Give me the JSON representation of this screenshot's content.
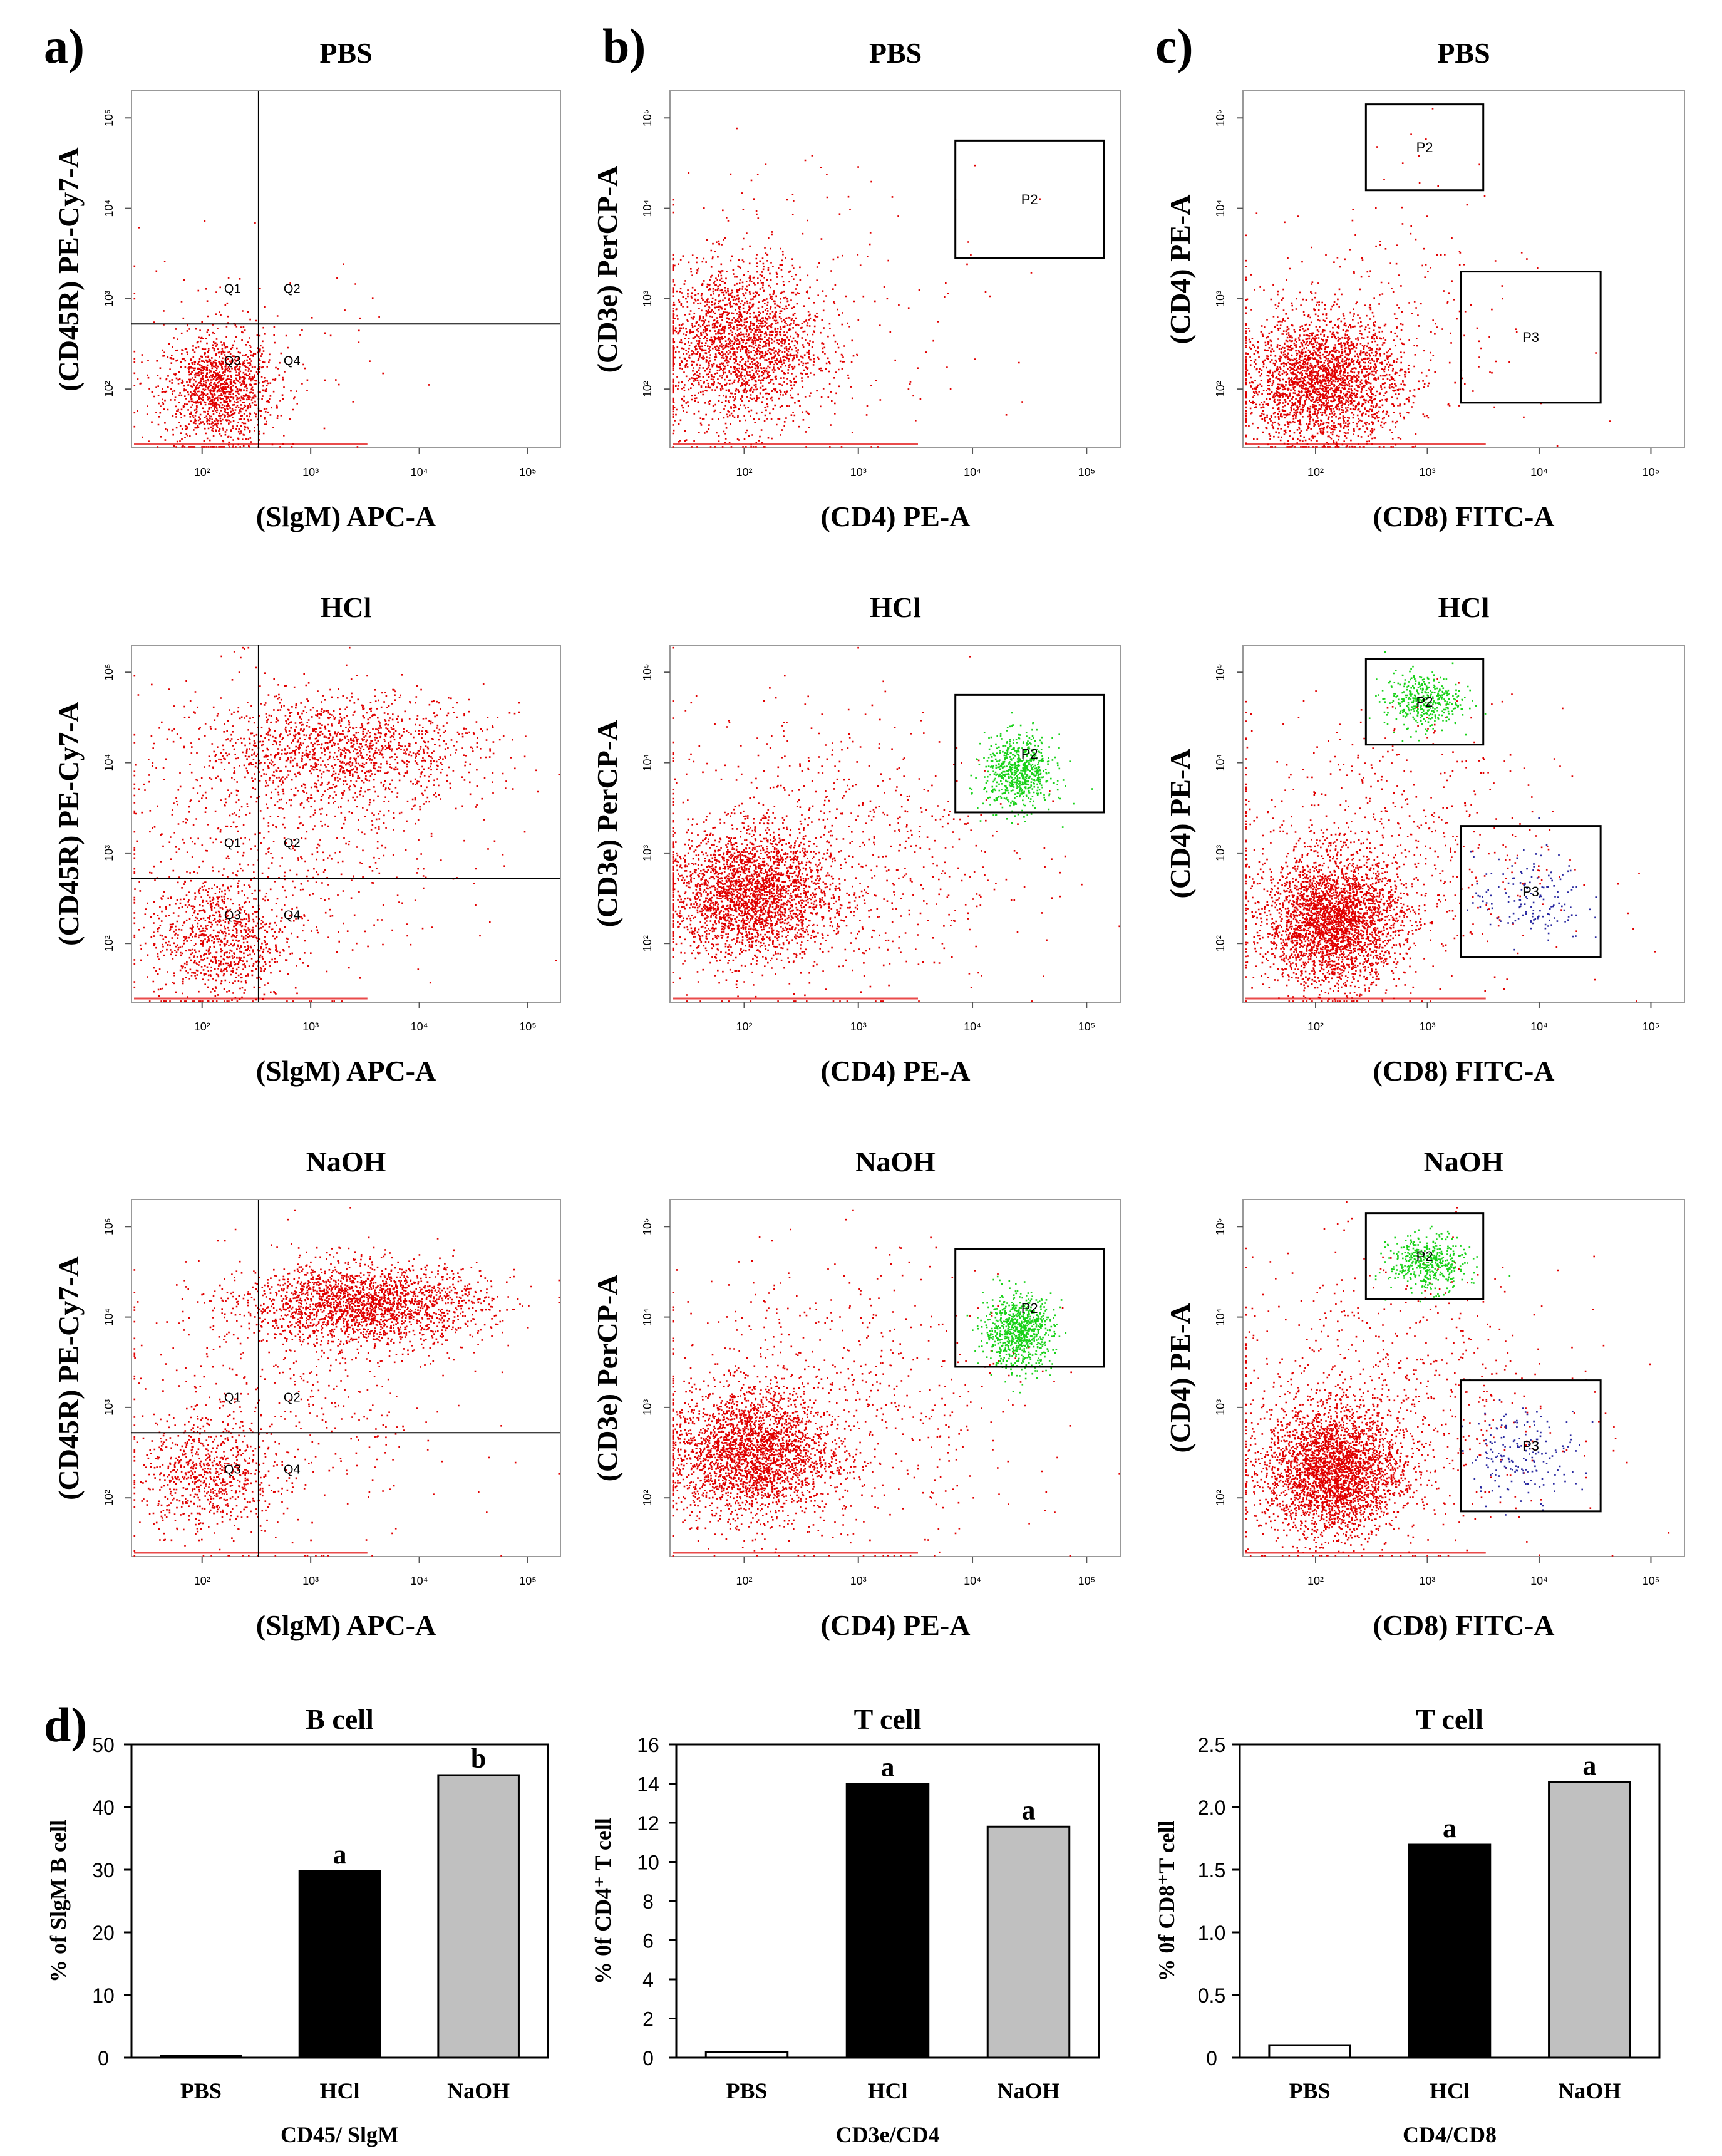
{
  "panel_letters": [
    "a)",
    "b)",
    "c)",
    "d)"
  ],
  "colors": {
    "red": "#e10000",
    "green": "#19d219",
    "blue": "#2828a0",
    "hcl_bar": "#000000",
    "naoh_bar": "#c0c0c0",
    "pbs_bar": "#ffffff"
  },
  "tick_labels": {
    "e2": "10²",
    "e3": "10³",
    "e4": "10⁴",
    "e5": "10⁵"
  },
  "flow": [
    {
      "row_title": "PBS",
      "axis_x": "(SlgM) APC-A",
      "axis_y": "(CD45R) PE-Cy7-A",
      "type": "quad",
      "gate_labels": [
        "Q1",
        "Q2",
        "Q3",
        "Q4"
      ],
      "scatter": {
        "main": [
          2.15,
          2.0,
          0.25,
          0.3,
          1300
        ],
        "spread": [
          2.3,
          2.3,
          0.6,
          0.6,
          150
        ]
      }
    },
    {
      "row_title": "PBS",
      "axis_x": "(CD4) PE-A",
      "axis_y": "(CD3e) PerCP-A",
      "type": "p2",
      "gate_labels": [
        "P2"
      ],
      "scatter": {
        "main": [
          1.95,
          2.5,
          0.35,
          0.45,
          2200
        ],
        "spread": [
          2.6,
          3.0,
          0.8,
          0.8,
          200
        ]
      }
    },
    {
      "row_title": "PBS",
      "axis_x": "(CD8) FITC-A",
      "axis_y": "(CD4) PE-A",
      "type": "p2p3",
      "gate_labels": [
        "P2",
        "P3"
      ],
      "scatter": {
        "main": [
          2.05,
          2.1,
          0.35,
          0.35,
          2600
        ],
        "spread": [
          2.5,
          2.6,
          0.7,
          0.7,
          300
        ],
        "p2": [
          2.9,
          4.7,
          0.2,
          0.2,
          8
        ]
      }
    },
    {
      "row_title": "HCl",
      "axis_x": "(SlgM) APC-A",
      "axis_y": "(CD45R) PE-Cy7-A",
      "type": "quad",
      "gate_labels": [
        "Q1",
        "Q2",
        "Q3",
        "Q4"
      ],
      "scatter": {
        "main": [
          2.15,
          2.05,
          0.3,
          0.35,
          900
        ],
        "upper": [
          3.3,
          4.15,
          0.65,
          0.3,
          1400
        ],
        "spread": [
          2.7,
          3.2,
          0.8,
          0.8,
          700
        ]
      }
    },
    {
      "row_title": "HCl",
      "axis_x": "(CD4) PE-A",
      "axis_y": "(CD3e) PerCP-A",
      "type": "p2",
      "gate_labels": [
        "P2"
      ],
      "scatter": {
        "main": [
          2.05,
          2.55,
          0.35,
          0.35,
          2600
        ],
        "spread": [
          2.7,
          3.0,
          0.8,
          0.8,
          800
        ],
        "p2": [
          4.4,
          3.9,
          0.15,
          0.2,
          700
        ]
      }
    },
    {
      "row_title": "HCl",
      "axis_x": "(CD8) FITC-A",
      "axis_y": "(CD4) PE-A",
      "type": "p2p3",
      "gate_labels": [
        "P2",
        "P3"
      ],
      "scatter": {
        "main": [
          2.15,
          2.25,
          0.3,
          0.35,
          3000
        ],
        "spread": [
          2.6,
          3.0,
          0.8,
          0.8,
          700
        ],
        "p2": [
          2.95,
          4.7,
          0.17,
          0.15,
          400
        ],
        "p3": [
          3.9,
          2.5,
          0.25,
          0.25,
          150
        ]
      }
    },
    {
      "row_title": "NaOH",
      "axis_x": "(SlgM) APC-A",
      "axis_y": "(CD45R) PE-Cy7-A",
      "type": "quad",
      "gate_labels": [
        "Q1",
        "Q2",
        "Q3",
        "Q4"
      ],
      "scatter": {
        "main": [
          2.05,
          2.25,
          0.3,
          0.3,
          700
        ],
        "upper": [
          3.5,
          4.15,
          0.55,
          0.22,
          2200
        ],
        "spread": [
          2.7,
          3.0,
          0.8,
          0.8,
          500
        ]
      }
    },
    {
      "row_title": "NaOH",
      "axis_x": "(CD4) PE-A",
      "axis_y": "(CD3e) PerCP-A",
      "type": "p2",
      "gate_labels": [
        "P2"
      ],
      "scatter": {
        "main": [
          2.05,
          2.5,
          0.35,
          0.35,
          2600
        ],
        "spread": [
          2.8,
          3.0,
          0.8,
          0.8,
          700
        ],
        "p2": [
          4.4,
          3.85,
          0.15,
          0.2,
          800
        ]
      }
    },
    {
      "row_title": "NaOH",
      "axis_x": "(CD8) FITC-A",
      "axis_y": "(CD4) PE-A",
      "type": "p2p3",
      "gate_labels": [
        "P2",
        "P3"
      ],
      "scatter": {
        "main": [
          2.15,
          2.3,
          0.3,
          0.35,
          3000
        ],
        "spread": [
          2.6,
          3.0,
          0.8,
          0.8,
          800
        ],
        "p2": [
          3.0,
          4.6,
          0.17,
          0.15,
          450
        ],
        "p3": [
          3.85,
          2.5,
          0.25,
          0.25,
          180
        ]
      }
    }
  ],
  "chart_data": [
    {
      "type": "bar",
      "title": "B cell",
      "categories": [
        "PBS",
        "HCl",
        "NaOH"
      ],
      "values": [
        0.3,
        29.8,
        45.1
      ],
      "ylabel": "% of SlgM B cell",
      "xlabel": "CD45/ SlgM",
      "ylim": [
        0,
        50
      ],
      "yticks": [
        "0",
        "10",
        "20",
        "30",
        "40",
        "50"
      ],
      "letters": [
        "",
        "a",
        "b"
      ]
    },
    {
      "type": "bar",
      "title": "T cell",
      "categories": [
        "PBS",
        "HCl",
        "NaOH"
      ],
      "values": [
        0.3,
        14.0,
        11.8
      ],
      "ylabel": "% 0f CD4⁺ T cell",
      "xlabel": "CD3e/CD4",
      "ylim": [
        0,
        16
      ],
      "yticks": [
        "0",
        "2",
        "4",
        "6",
        "8",
        "10",
        "12",
        "14",
        "16"
      ],
      "letters": [
        "",
        "a",
        "a"
      ]
    },
    {
      "type": "bar",
      "title": "T cell",
      "categories": [
        "PBS",
        "HCl",
        "NaOH"
      ],
      "values": [
        0.1,
        1.7,
        2.2
      ],
      "ylabel": "% 0f CD8⁺T cell",
      "xlabel": "CD4/CD8",
      "ylim": [
        0,
        2.5
      ],
      "yticks": [
        "0",
        "0.5",
        "1.0",
        "1.5",
        "2.0",
        "2.5"
      ],
      "letters": [
        "",
        "a",
        "a"
      ]
    }
  ]
}
